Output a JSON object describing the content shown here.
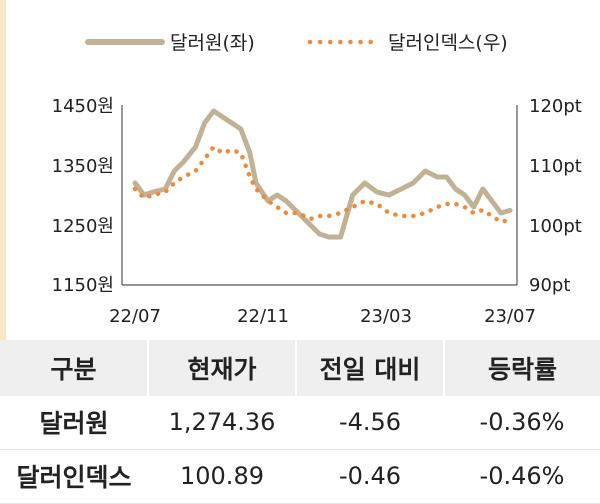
{
  "chart_data": {
    "type": "line",
    "legend": [
      {
        "label": "달러원(좌)",
        "color": "#c2b295",
        "style": "solid"
      },
      {
        "label": "달러인덱스(우)",
        "color": "#ee8a3c",
        "style": "dotted"
      }
    ],
    "x_ticks": [
      "22/07",
      "22/11",
      "23/03",
      "23/07"
    ],
    "y_left_ticks": [
      "1450원",
      "1350원",
      "1250원",
      "1150원"
    ],
    "y_right_ticks": [
      "120pt",
      "110pt",
      "100pt",
      "90pt"
    ],
    "y_left_lim": [
      1150,
      1450
    ],
    "y_right_lim": [
      90,
      120
    ],
    "x_lim": [
      0,
      12.4
    ],
    "grid": false,
    "legend_position": "top",
    "series": [
      {
        "name": "달러원(좌)",
        "axis": "left",
        "x": [
          0,
          0.3,
          0.6,
          1.0,
          1.3,
          1.6,
          2.0,
          2.3,
          2.6,
          2.9,
          3.2,
          3.5,
          3.8,
          4.0,
          4.2,
          4.4,
          4.7,
          5.0,
          5.4,
          5.8,
          6.1,
          6.4,
          6.8,
          7.2,
          7.6,
          8.0,
          8.4,
          8.8,
          9.2,
          9.6,
          10.0,
          10.3,
          10.6,
          10.9,
          11.2,
          11.5,
          11.8,
          12.1,
          12.4
        ],
        "values": [
          1320,
          1300,
          1305,
          1310,
          1340,
          1355,
          1380,
          1420,
          1440,
          1430,
          1420,
          1410,
          1370,
          1320,
          1305,
          1290,
          1300,
          1290,
          1270,
          1250,
          1235,
          1230,
          1230,
          1300,
          1320,
          1305,
          1300,
          1310,
          1320,
          1340,
          1330,
          1330,
          1310,
          1300,
          1280,
          1310,
          1290,
          1270,
          1274.36
        ]
      },
      {
        "name": "달러인덱스(우)",
        "axis": "right",
        "x": [
          0,
          0.3,
          0.6,
          1.0,
          1.3,
          1.6,
          2.0,
          2.3,
          2.6,
          2.9,
          3.2,
          3.5,
          3.8,
          4.0,
          4.2,
          4.4,
          4.7,
          5.0,
          5.4,
          5.8,
          6.1,
          6.4,
          6.8,
          7.2,
          7.6,
          8.0,
          8.4,
          8.8,
          9.2,
          9.6,
          10.0,
          10.3,
          10.6,
          10.9,
          11.2,
          11.5,
          11.8,
          12.1,
          12.4
        ],
        "values": [
          106,
          104.5,
          105,
          105.5,
          107,
          108,
          109,
          111,
          113,
          112,
          112.5,
          112,
          108,
          106,
          105,
          104,
          103,
          102,
          102,
          101,
          101.5,
          101.5,
          102,
          103,
          104,
          103.5,
          102,
          101.5,
          101.5,
          102,
          103,
          103.5,
          103.5,
          103,
          102,
          102.5,
          101.5,
          100.5,
          100.89
        ]
      }
    ]
  },
  "table": {
    "headers": [
      "구분",
      "현재가",
      "전일 대비",
      "등락률"
    ],
    "rows": [
      [
        "달러원",
        "1,274.36",
        "-4.56",
        "-0.36%"
      ],
      [
        "달러인덱스",
        "100.89",
        "-0.46",
        "-0.46%"
      ]
    ]
  }
}
